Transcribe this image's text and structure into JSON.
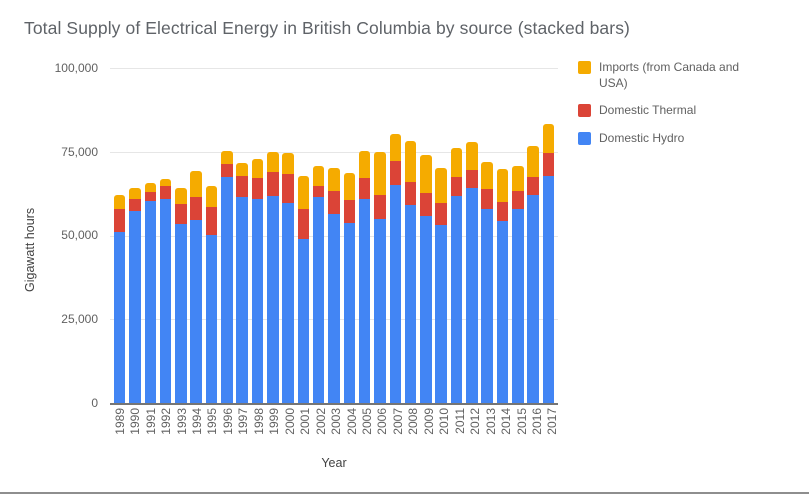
{
  "chart_data": {
    "type": "bar",
    "stacked": true,
    "title": "Total Supply of Electrical Energy in British Columbia by source (stacked bars)",
    "xlabel": "Year",
    "ylabel": "Gigawatt hours",
    "ylim": [
      0,
      100000
    ],
    "yticks": [
      0,
      25000,
      50000,
      75000,
      100000
    ],
    "ytick_labels": [
      "0",
      "25,000",
      "50,000",
      "75,000",
      "100,000"
    ],
    "grid": true,
    "legend_position": "top-right",
    "categories": [
      "1989",
      "1990",
      "1991",
      "1992",
      "1993",
      "1994",
      "1995",
      "1996",
      "1997",
      "1998",
      "1999",
      "2000",
      "2001",
      "2002",
      "2003",
      "2004",
      "2005",
      "2006",
      "2007",
      "2008",
      "2009",
      "2010",
      "2011",
      "2012",
      "2013",
      "2014",
      "2015",
      "2016",
      "2017"
    ],
    "series": [
      {
        "name": "Domestic Hydro",
        "color": "#4285F4",
        "values": [
          51000,
          57400,
          60200,
          60900,
          53500,
          54700,
          50200,
          67500,
          61500,
          61000,
          61700,
          59800,
          49100,
          61400,
          56400,
          53700,
          61000,
          55000,
          65200,
          59200,
          55900,
          53200,
          61800,
          64300,
          57800,
          54300,
          57900,
          62100,
          67700
        ]
      },
      {
        "name": "Domestic Thermal",
        "color": "#DB4437",
        "values": [
          6900,
          3600,
          2800,
          3800,
          5900,
          6700,
          8300,
          3900,
          6200,
          6200,
          7400,
          8600,
          8900,
          3500,
          7000,
          7000,
          6200,
          7200,
          7200,
          6800,
          6800,
          6500,
          5600,
          5300,
          6000,
          5700,
          5300,
          5400,
          7000
        ]
      },
      {
        "name": "Imports (from Canada and USA)",
        "color": "#F5AB00",
        "values": [
          4300,
          3200,
          2700,
          2300,
          4800,
          7800,
          6200,
          3900,
          4000,
          5700,
          5800,
          6200,
          9700,
          5800,
          6700,
          8000,
          7900,
          12600,
          7900,
          12300,
          11400,
          10400,
          8700,
          8300,
          8200,
          10000,
          7500,
          9200,
          8500
        ]
      }
    ]
  }
}
